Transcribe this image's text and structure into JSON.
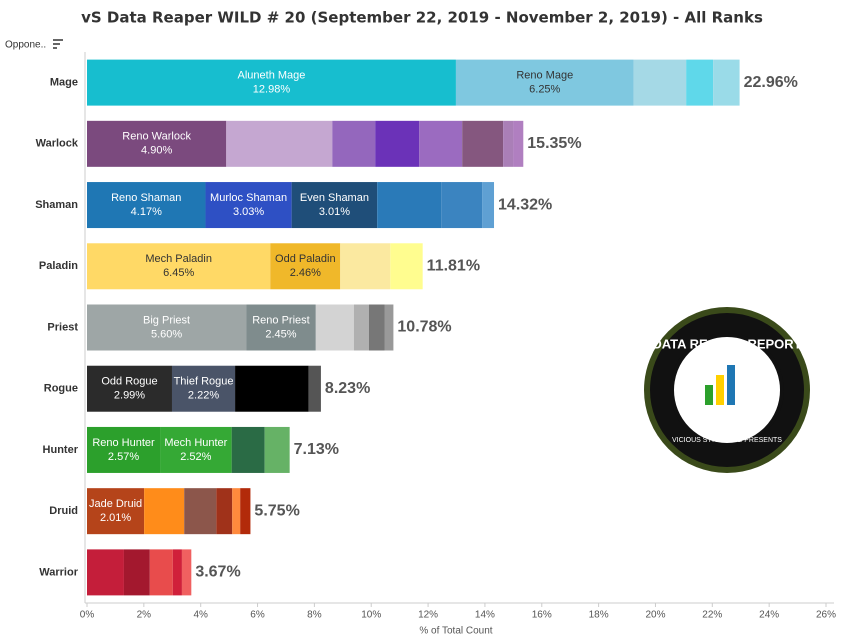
{
  "chart_data": {
    "type": "stacked-bar-horizontal",
    "title": "vS Data Reaper WILD # 20 (September 22, 2019 - November 2, 2019) - All Ranks",
    "column_header": "Oppone..",
    "x_label": "% of Total Count",
    "xlim": [
      0,
      26
    ],
    "xticks": [
      {
        "value": 0,
        "label": "0%"
      },
      {
        "value": 2,
        "label": "2%"
      },
      {
        "value": 4,
        "label": "4%"
      },
      {
        "value": 6,
        "label": "6%"
      },
      {
        "value": 8,
        "label": "8%"
      },
      {
        "value": 10,
        "label": "10%"
      },
      {
        "value": 12,
        "label": "12%"
      },
      {
        "value": 14,
        "label": "14%"
      },
      {
        "value": 16,
        "label": "16%"
      },
      {
        "value": 18,
        "label": "18%"
      },
      {
        "value": 20,
        "label": "20%"
      },
      {
        "value": 22,
        "label": "22%"
      },
      {
        "value": 24,
        "label": "24%"
      },
      {
        "value": 26,
        "label": "26%"
      }
    ],
    "rows": [
      {
        "category": "Mage",
        "total": 22.96,
        "total_label": "22.96%",
        "segments": [
          {
            "name": "Aluneth Mage",
            "value": 12.98,
            "value_label": "12.98%",
            "color": "#17becf"
          },
          {
            "name": "Reno Mage",
            "value": 6.25,
            "value_label": "6.25%",
            "color": "#7fc8e0"
          },
          {
            "value": 1.85,
            "color": "#a5d9e6"
          },
          {
            "value": 0.95,
            "color": "#5fd8ea"
          },
          {
            "value": 0.93,
            "color": "#9adbe8"
          }
        ]
      },
      {
        "category": "Warlock",
        "total": 15.35,
        "total_label": "15.35%",
        "segments": [
          {
            "name": "Reno Warlock",
            "value": 4.9,
            "value_label": "4.90%",
            "color": "#7b4a7e"
          },
          {
            "value": 3.73,
            "color": "#c5a7d1"
          },
          {
            "value": 1.51,
            "color": "#9467bd"
          },
          {
            "value": 1.55,
            "color": "#6b32b8"
          },
          {
            "value": 1.51,
            "color": "#9b6bc0"
          },
          {
            "value": 1.44,
            "color": "#85577f"
          },
          {
            "value": 0.35,
            "color": "#aa7fb7"
          },
          {
            "value": 0.36,
            "color": "#b07fc0"
          }
        ]
      },
      {
        "category": "Shaman",
        "total": 14.32,
        "total_label": "14.32%",
        "segments": [
          {
            "name": "Reno Shaman",
            "value": 4.17,
            "value_label": "4.17%",
            "color": "#1f77b4"
          },
          {
            "name": "Murloc Shaman",
            "value": 3.03,
            "value_label": "3.03%",
            "color": "#2e50c4"
          },
          {
            "name": "Even Shaman",
            "value": 3.01,
            "value_label": "3.01%",
            "color": "#1f4e79"
          },
          {
            "value": 2.25,
            "color": "#2a7ab8"
          },
          {
            "value": 1.44,
            "color": "#3b84c0"
          },
          {
            "value": 0.42,
            "color": "#5fa0d3"
          }
        ]
      },
      {
        "category": "Paladin",
        "total": 11.81,
        "total_label": "11.81%",
        "segments": [
          {
            "name": "Mech Paladin",
            "value": 6.45,
            "value_label": "6.45%",
            "color": "#ffd966"
          },
          {
            "name": "Odd Paladin",
            "value": 2.46,
            "value_label": "2.46%",
            "color": "#f0b82a"
          },
          {
            "value": 1.76,
            "color": "#fbe9a0"
          },
          {
            "value": 1.14,
            "color": "#fffd8f"
          }
        ]
      },
      {
        "category": "Priest",
        "total": 10.78,
        "total_label": "10.78%",
        "segments": [
          {
            "name": "Big Priest",
            "value": 5.6,
            "value_label": "5.60%",
            "color": "#9ea6a6"
          },
          {
            "name": "Reno Priest",
            "value": 2.45,
            "value_label": "2.45%",
            "color": "#7f8c8d"
          },
          {
            "value": 1.34,
            "color": "#d3d3d3"
          },
          {
            "value": 0.53,
            "color": "#b0b0b0"
          },
          {
            "value": 0.56,
            "color": "#777777"
          },
          {
            "value": 0.3,
            "color": "#999999"
          }
        ]
      },
      {
        "category": "Rogue",
        "total": 8.23,
        "total_label": "8.23%",
        "segments": [
          {
            "name": "Odd Rogue",
            "value": 2.99,
            "value_label": "2.99%",
            "color": "#2b2b2b"
          },
          {
            "name": "Thief Rogue",
            "value": 2.22,
            "value_label": "2.22%",
            "color": "#4a5468"
          },
          {
            "value": 2.59,
            "color": "#000000"
          },
          {
            "value": 0.43,
            "color": "#555555"
          }
        ]
      },
      {
        "category": "Hunter",
        "total": 7.13,
        "total_label": "7.13%",
        "segments": [
          {
            "name": "Reno Hunter",
            "value": 2.57,
            "value_label": "2.57%",
            "color": "#2ca02c"
          },
          {
            "name": "Mech Hunter",
            "value": 2.52,
            "value_label": "2.52%",
            "color": "#35a935"
          },
          {
            "value": 1.16,
            "color": "#2a6b45"
          },
          {
            "value": 0.88,
            "color": "#66b266"
          }
        ]
      },
      {
        "category": "Druid",
        "total": 5.75,
        "total_label": "5.75%",
        "segments": [
          {
            "name": "Jade Druid",
            "value": 2.01,
            "value_label": "2.01%",
            "color": "#b5441a"
          },
          {
            "value": 1.41,
            "color": "#ff8c1a"
          },
          {
            "value": 1.13,
            "color": "#8c564b"
          },
          {
            "value": 0.56,
            "color": "#a0321a"
          },
          {
            "value": 0.28,
            "color": "#ff8a3d"
          },
          {
            "value": 0.36,
            "color": "#b22a0a"
          }
        ]
      },
      {
        "category": "Warrior",
        "total": 3.67,
        "total_label": "3.67%",
        "segments": [
          {
            "value": 1.3,
            "color": "#c41e3a"
          },
          {
            "value": 0.91,
            "color": "#a3182e"
          },
          {
            "value": 0.81,
            "color": "#e84c4c"
          },
          {
            "value": 0.32,
            "color": "#d0203a"
          },
          {
            "value": 0.33,
            "color": "#f06060"
          }
        ]
      }
    ],
    "logo": {
      "title": "DATA REAPER REPORT",
      "subtitle": "VICIOUS SYNDICATE PRESENTS"
    }
  }
}
